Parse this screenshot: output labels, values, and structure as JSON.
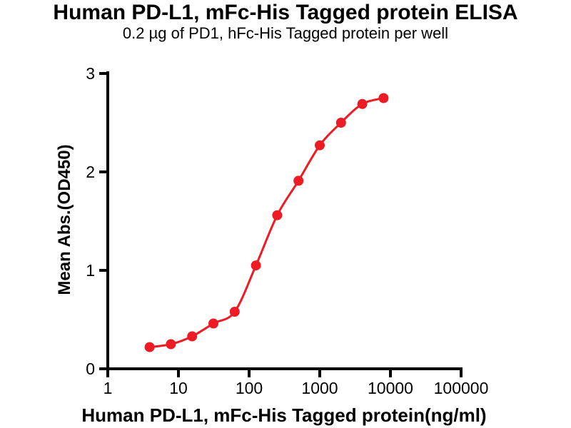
{
  "title": "Human PD-L1, mFc-His Tagged protein ELISA",
  "subtitle": "0.2 µg of PD1, hFc-His Tagged protein per well",
  "chart_data": {
    "type": "scatter",
    "title": "Human PD-L1, mFc-His Tagged protein ELISA",
    "subtitle": "0.2 µg of PD1, hFc-His Tagged protein per well",
    "xlabel": "Human PD-L1, mFc-His Tagged protein(ng/ml)",
    "ylabel": "Mean Abs.(OD450)",
    "x_scale": "log10",
    "xlim": [
      1,
      100000
    ],
    "ylim": [
      0,
      3
    ],
    "x_ticks": [
      1,
      10,
      100,
      1000,
      10000,
      100000
    ],
    "y_ticks": [
      0,
      1,
      2,
      3
    ],
    "grid": "off",
    "legend": "none",
    "series": [
      {
        "name": "Human PD-L1, mFc-His Tagged protein",
        "color": "#ED1C24",
        "marker": "circle",
        "fit": "sigmoidal-4PL-curve",
        "x": [
          3.906,
          7.813,
          15.625,
          31.25,
          62.5,
          125,
          250,
          500,
          1000,
          2000,
          4000,
          8000
        ],
        "y": [
          0.22,
          0.25,
          0.33,
          0.46,
          0.58,
          1.05,
          1.56,
          1.91,
          2.27,
          2.5,
          2.69,
          2.75
        ]
      }
    ]
  }
}
